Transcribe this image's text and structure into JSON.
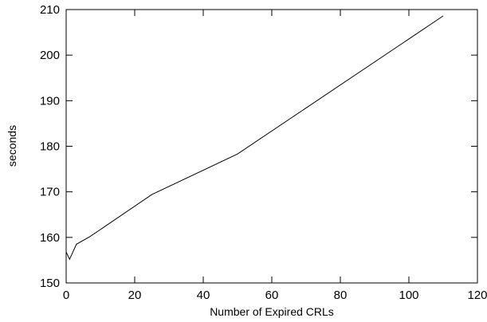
{
  "chart_data": {
    "type": "line",
    "title": "",
    "xlabel": "Number of Expired CRLs",
    "ylabel": "seconds",
    "xlim": [
      0,
      120
    ],
    "ylim": [
      150,
      210
    ],
    "xticks": [
      "0",
      "20",
      "40",
      "60",
      "80",
      "100",
      "120"
    ],
    "yticks": [
      "150",
      "160",
      "170",
      "180",
      "190",
      "200",
      "210"
    ],
    "grid": false,
    "legend": "none",
    "line_color": "#000000",
    "series": [
      {
        "x": [
          0,
          1,
          3,
          7,
          25,
          50,
          110
        ],
        "y": [
          156.8,
          155.2,
          158.5,
          160.2,
          169.4,
          178.3,
          208.6
        ]
      }
    ]
  }
}
